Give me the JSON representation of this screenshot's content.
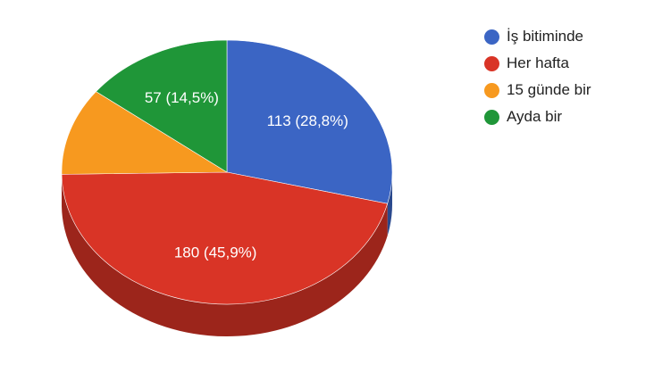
{
  "chart_data": {
    "type": "pie",
    "style": "3d",
    "slices": [
      {
        "label": "İş bitiminde",
        "value": 113,
        "percent": "28,8%",
        "color": "#3b65c4",
        "data_label": "113 (28,8%)"
      },
      {
        "label": "Her hafta",
        "value": 180,
        "percent": "45,9%",
        "color": "#d93426",
        "data_label": "180 (45,9%)"
      },
      {
        "label": "15 günde bir",
        "value": 42,
        "percent": "10,7%",
        "color": "#f7991f",
        "data_label": ""
      },
      {
        "label": "Ayda bir",
        "value": 57,
        "percent": "14,5%",
        "color": "#1f9638",
        "data_label": "57 (14,5%)"
      }
    ],
    "legend_position": "right"
  }
}
